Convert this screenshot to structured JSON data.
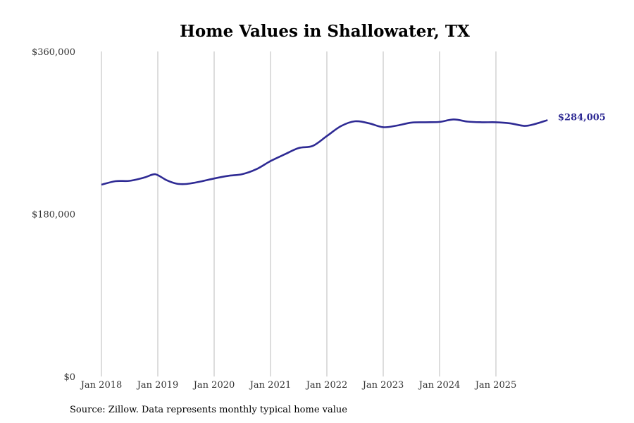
{
  "chart_data": {
    "type": "line",
    "title": "Home Values in Shallowater, TX",
    "xlabel": "",
    "ylabel": "",
    "ylim": [
      0,
      360000
    ],
    "yticks": [
      0,
      180000,
      360000
    ],
    "ytick_labels": [
      "$0",
      "$180,000",
      "$360,000"
    ],
    "x_start": "Jan 2018",
    "xticks_months": [
      0,
      12,
      24,
      36,
      48,
      60,
      72,
      84
    ],
    "xtick_labels": [
      "Jan 2018",
      "Jan 2019",
      "Jan 2020",
      "Jan 2021",
      "Jan 2022",
      "Jan 2023",
      "Jan 2024",
      "Jan 2025"
    ],
    "xlim_months": [
      0,
      95
    ],
    "grid": "vertical",
    "series": [
      {
        "name": "Typical home value",
        "color": "#2e2a94",
        "x_months": [
          0,
          3,
          6,
          9,
          11,
          12,
          14,
          16,
          18,
          21,
          24,
          27,
          30,
          33,
          36,
          39,
          42,
          45,
          48,
          51,
          54,
          57,
          60,
          63,
          66,
          69,
          72,
          75,
          78,
          81,
          84,
          87,
          90,
          92,
          95
        ],
        "values": [
          212400,
          216300,
          216700,
          220200,
          223800,
          223000,
          217100,
          213600,
          213200,
          215800,
          219300,
          222200,
          224100,
          229600,
          238600,
          246000,
          253000,
          255400,
          266300,
          277300,
          282700,
          280400,
          276100,
          278000,
          281200,
          281600,
          282000,
          284700,
          282300,
          281600,
          281600,
          280400,
          277600,
          279200,
          284005
        ]
      }
    ],
    "end_label": "$284,005"
  },
  "footer": {
    "source": "Source: Zillow. Data represents monthly typical home value"
  }
}
